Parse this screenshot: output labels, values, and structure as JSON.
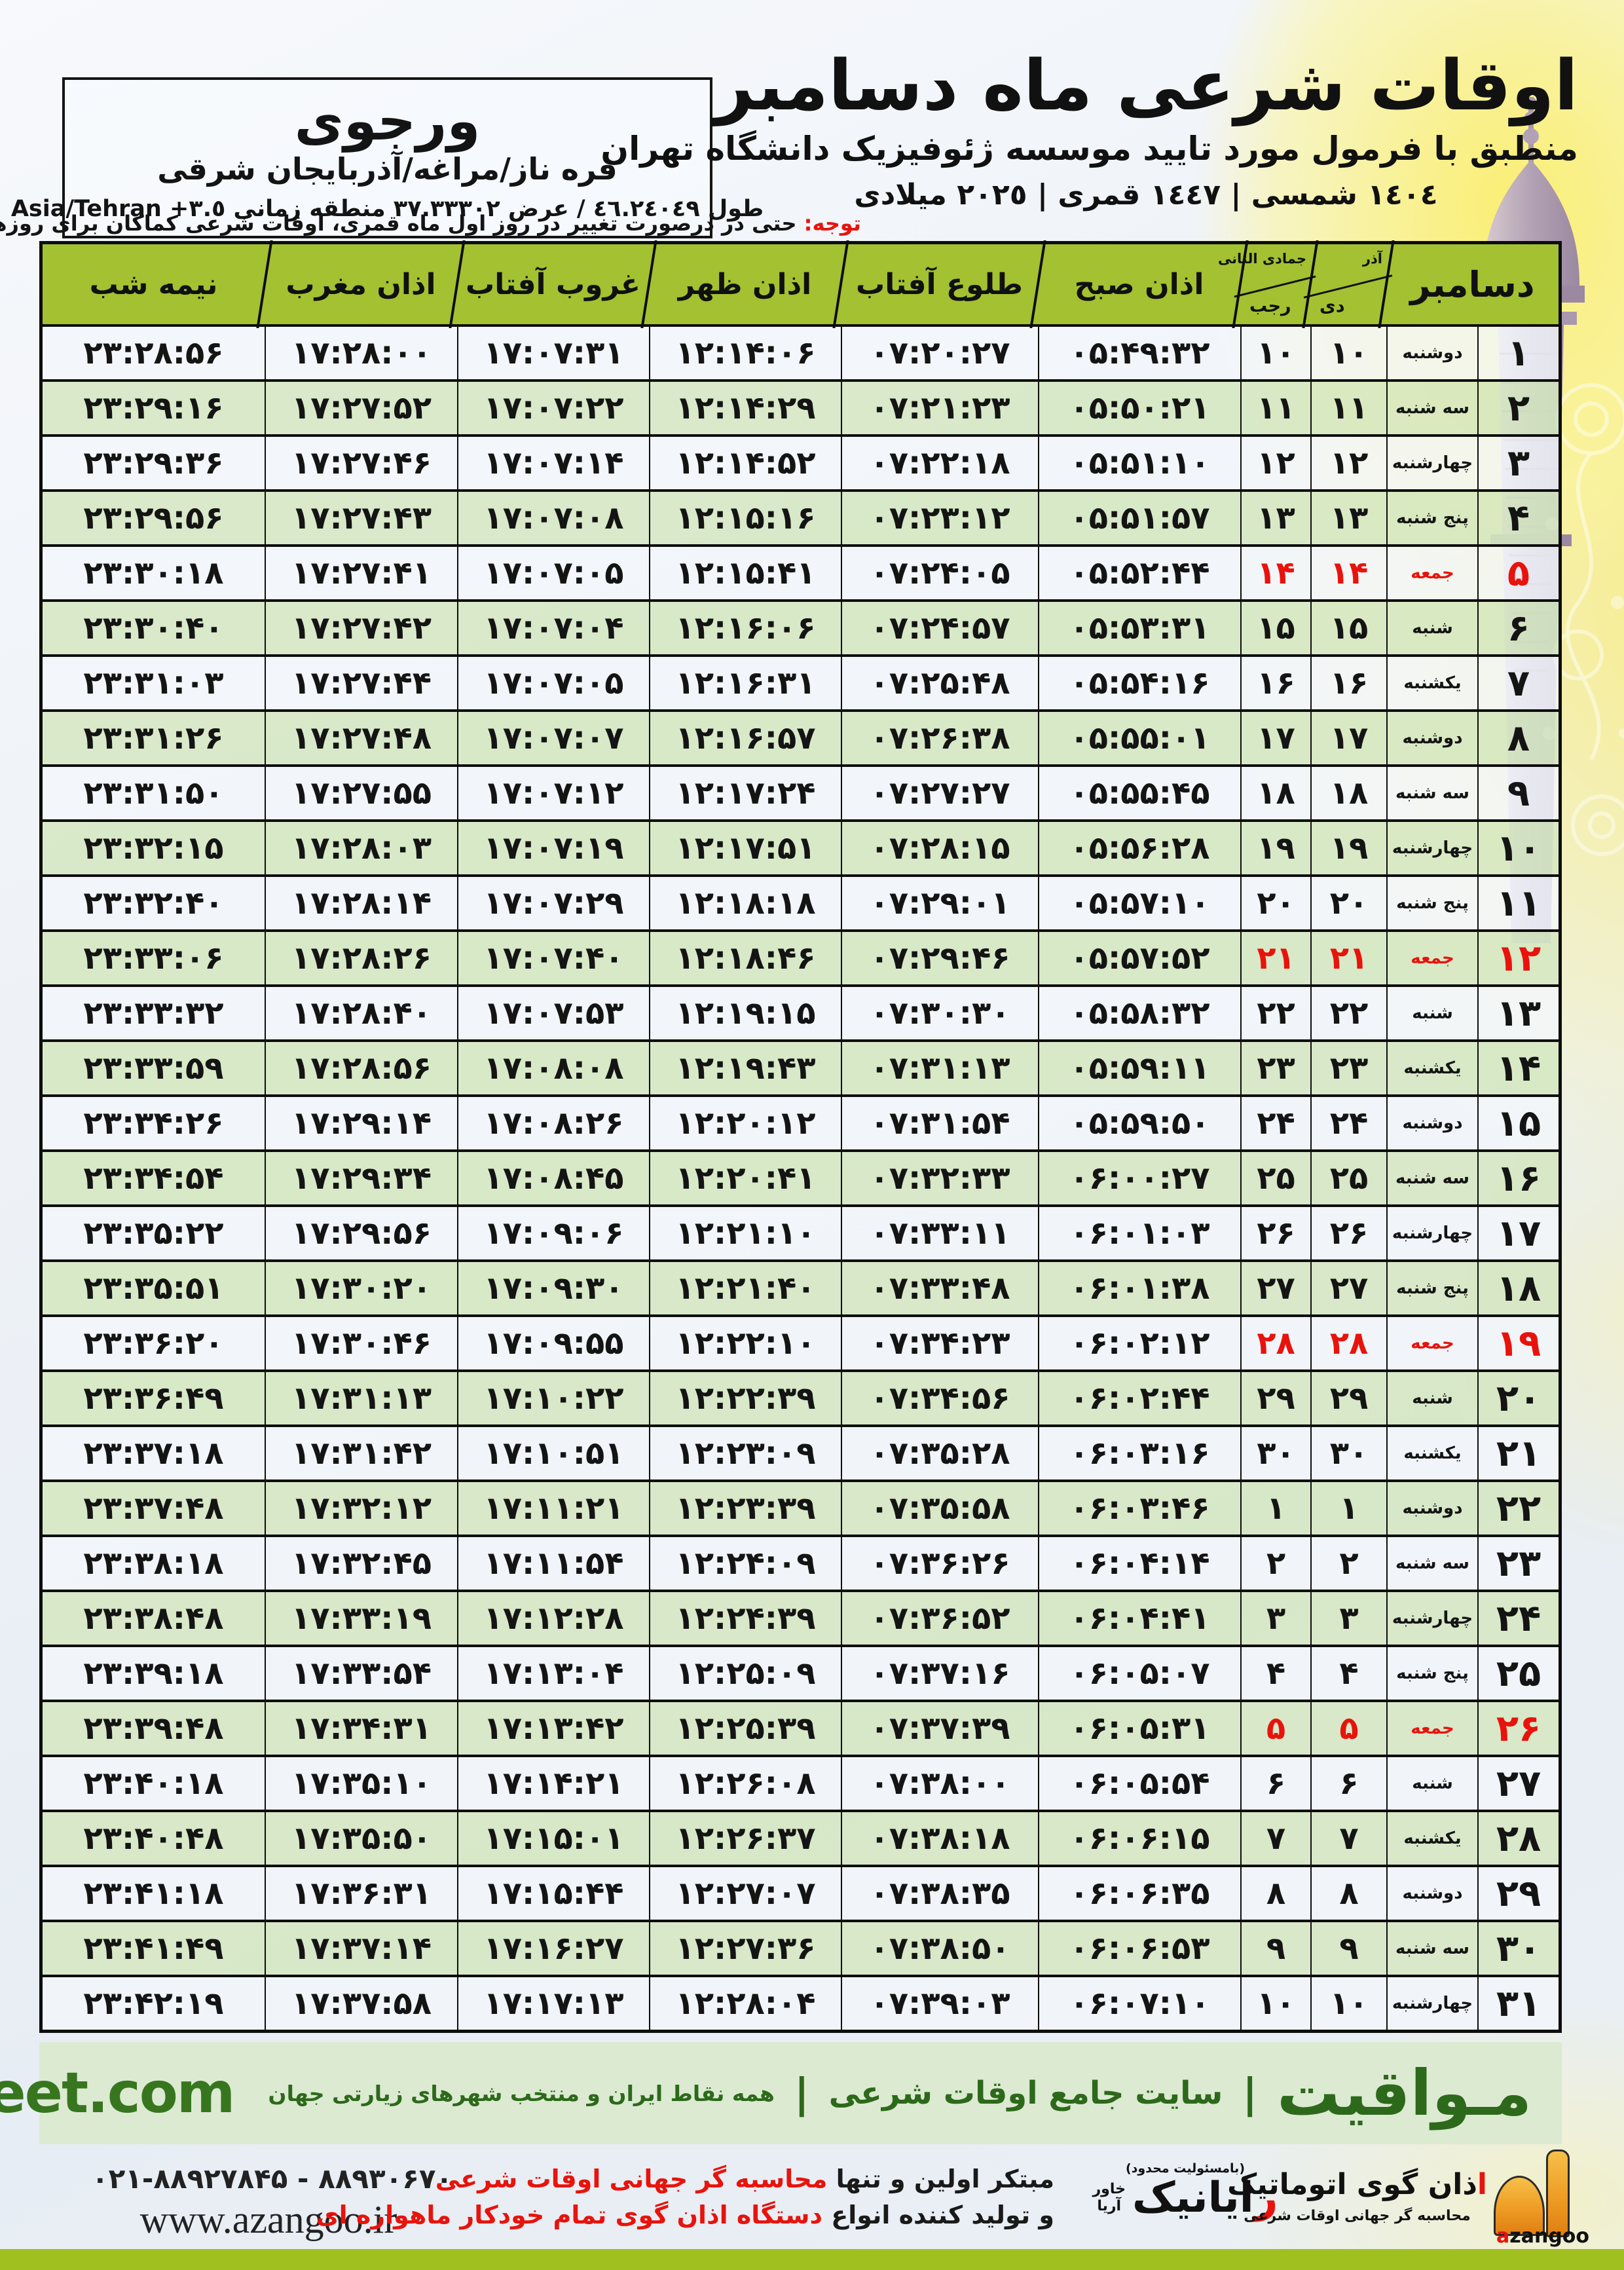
{
  "location": {
    "name": "ورجوی",
    "region": "قره ناز/مراغه/آذربایجان شرقی",
    "coords": "طول ٤٦.٢٤٠٤٩ / عرض ٣٧.٣٣٣٠٢ منطقه زمانی",
    "tz": "+٣.٥",
    "tzname": "Asia/Tehran"
  },
  "header": {
    "title": "اوقات شرعی ماه دسامبر",
    "subtitle": "منطبق با فرمول مورد تایید موسسه ژئوفیزیک دانشگاه تهران",
    "years": "١٤٠٤ شمسی | ١٤٤٧ قمری | ٢٠٢٥ میلادی"
  },
  "notice": {
    "label": "توجه:",
    "text": " حتی در درصورت تغییر در روز اول ماه قمری، اوقات شرعی کماکان برای روزهای شمسی و میلادی معتبر است."
  },
  "table": {
    "headers": {
      "month": "دسامبر",
      "persian_top": "آذر",
      "persian_bottom": "دی",
      "hijri_top": "جمادی الثانی",
      "hijri_bottom": "رجب",
      "fajr": "اذان صبح",
      "sunrise": "طلوع آفتاب",
      "dhuhr": "اذان ظهر",
      "sunset": "غروب آفتاب",
      "maghrib": "اذان مغرب",
      "midnight": "نیمه شب"
    },
    "rows": [
      {
        "day": "۱",
        "weekday": "دوشنبه",
        "jalali": "۱۰",
        "hijri": "۱۰",
        "fajr": "۰۵:۴۹:۳۲",
        "sunrise": "۰۷:۲۰:۲۷",
        "dhuhr": "۱۲:۱۴:۰۶",
        "sunset": "۱۷:۰۷:۳۱",
        "maghrib": "۱۷:۲۸:۰۰",
        "midnight": "۲۳:۲۸:۵۶",
        "friday": false
      },
      {
        "day": "۲",
        "weekday": "سه شنبه",
        "jalali": "۱۱",
        "hijri": "۱۱",
        "fajr": "۰۵:۵۰:۲۱",
        "sunrise": "۰۷:۲۱:۲۳",
        "dhuhr": "۱۲:۱۴:۲۹",
        "sunset": "۱۷:۰۷:۲۲",
        "maghrib": "۱۷:۲۷:۵۲",
        "midnight": "۲۳:۲۹:۱۶",
        "friday": false
      },
      {
        "day": "۳",
        "weekday": "چهارشنبه",
        "jalali": "۱۲",
        "hijri": "۱۲",
        "fajr": "۰۵:۵۱:۱۰",
        "sunrise": "۰۷:۲۲:۱۸",
        "dhuhr": "۱۲:۱۴:۵۲",
        "sunset": "۱۷:۰۷:۱۴",
        "maghrib": "۱۷:۲۷:۴۶",
        "midnight": "۲۳:۲۹:۳۶",
        "friday": false
      },
      {
        "day": "۴",
        "weekday": "پنج شنبه",
        "jalali": "۱۳",
        "hijri": "۱۳",
        "fajr": "۰۵:۵۱:۵۷",
        "sunrise": "۰۷:۲۳:۱۲",
        "dhuhr": "۱۲:۱۵:۱۶",
        "sunset": "۱۷:۰۷:۰۸",
        "maghrib": "۱۷:۲۷:۴۳",
        "midnight": "۲۳:۲۹:۵۶",
        "friday": false
      },
      {
        "day": "۵",
        "weekday": "جمعه",
        "jalali": "۱۴",
        "hijri": "۱۴",
        "fajr": "۰۵:۵۲:۴۴",
        "sunrise": "۰۷:۲۴:۰۵",
        "dhuhr": "۱۲:۱۵:۴۱",
        "sunset": "۱۷:۰۷:۰۵",
        "maghrib": "۱۷:۲۷:۴۱",
        "midnight": "۲۳:۳۰:۱۸",
        "friday": true
      },
      {
        "day": "۶",
        "weekday": "شنبه",
        "jalali": "۱۵",
        "hijri": "۱۵",
        "fajr": "۰۵:۵۳:۳۱",
        "sunrise": "۰۷:۲۴:۵۷",
        "dhuhr": "۱۲:۱۶:۰۶",
        "sunset": "۱۷:۰۷:۰۴",
        "maghrib": "۱۷:۲۷:۴۲",
        "midnight": "۲۳:۳۰:۴۰",
        "friday": false
      },
      {
        "day": "۷",
        "weekday": "یکشنبه",
        "jalali": "۱۶",
        "hijri": "۱۶",
        "fajr": "۰۵:۵۴:۱۶",
        "sunrise": "۰۷:۲۵:۴۸",
        "dhuhr": "۱۲:۱۶:۳۱",
        "sunset": "۱۷:۰۷:۰۵",
        "maghrib": "۱۷:۲۷:۴۴",
        "midnight": "۲۳:۳۱:۰۳",
        "friday": false
      },
      {
        "day": "۸",
        "weekday": "دوشنبه",
        "jalali": "۱۷",
        "hijri": "۱۷",
        "fajr": "۰۵:۵۵:۰۱",
        "sunrise": "۰۷:۲۶:۳۸",
        "dhuhr": "۱۲:۱۶:۵۷",
        "sunset": "۱۷:۰۷:۰۷",
        "maghrib": "۱۷:۲۷:۴۸",
        "midnight": "۲۳:۳۱:۲۶",
        "friday": false
      },
      {
        "day": "۹",
        "weekday": "سه شنبه",
        "jalali": "۱۸",
        "hijri": "۱۸",
        "fajr": "۰۵:۵۵:۴۵",
        "sunrise": "۰۷:۲۷:۲۷",
        "dhuhr": "۱۲:۱۷:۲۴",
        "sunset": "۱۷:۰۷:۱۲",
        "maghrib": "۱۷:۲۷:۵۵",
        "midnight": "۲۳:۳۱:۵۰",
        "friday": false
      },
      {
        "day": "۱۰",
        "weekday": "چهارشنبه",
        "jalali": "۱۹",
        "hijri": "۱۹",
        "fajr": "۰۵:۵۶:۲۸",
        "sunrise": "۰۷:۲۸:۱۵",
        "dhuhr": "۱۲:۱۷:۵۱",
        "sunset": "۱۷:۰۷:۱۹",
        "maghrib": "۱۷:۲۸:۰۳",
        "midnight": "۲۳:۳۲:۱۵",
        "friday": false
      },
      {
        "day": "۱۱",
        "weekday": "پنج شنبه",
        "jalali": "۲۰",
        "hijri": "۲۰",
        "fajr": "۰۵:۵۷:۱۰",
        "sunrise": "۰۷:۲۹:۰۱",
        "dhuhr": "۱۲:۱۸:۱۸",
        "sunset": "۱۷:۰۷:۲۹",
        "maghrib": "۱۷:۲۸:۱۴",
        "midnight": "۲۳:۳۲:۴۰",
        "friday": false
      },
      {
        "day": "۱۲",
        "weekday": "جمعه",
        "jalali": "۲۱",
        "hijri": "۲۱",
        "fajr": "۰۵:۵۷:۵۲",
        "sunrise": "۰۷:۲۹:۴۶",
        "dhuhr": "۱۲:۱۸:۴۶",
        "sunset": "۱۷:۰۷:۴۰",
        "maghrib": "۱۷:۲۸:۲۶",
        "midnight": "۲۳:۳۳:۰۶",
        "friday": true
      },
      {
        "day": "۱۳",
        "weekday": "شنبه",
        "jalali": "۲۲",
        "hijri": "۲۲",
        "fajr": "۰۵:۵۸:۳۲",
        "sunrise": "۰۷:۳۰:۳۰",
        "dhuhr": "۱۲:۱۹:۱۵",
        "sunset": "۱۷:۰۷:۵۳",
        "maghrib": "۱۷:۲۸:۴۰",
        "midnight": "۲۳:۳۳:۳۲",
        "friday": false
      },
      {
        "day": "۱۴",
        "weekday": "یکشنبه",
        "jalali": "۲۳",
        "hijri": "۲۳",
        "fajr": "۰۵:۵۹:۱۱",
        "sunrise": "۰۷:۳۱:۱۳",
        "dhuhr": "۱۲:۱۹:۴۳",
        "sunset": "۱۷:۰۸:۰۸",
        "maghrib": "۱۷:۲۸:۵۶",
        "midnight": "۲۳:۳۳:۵۹",
        "friday": false
      },
      {
        "day": "۱۵",
        "weekday": "دوشنبه",
        "jalali": "۲۴",
        "hijri": "۲۴",
        "fajr": "۰۵:۵۹:۵۰",
        "sunrise": "۰۷:۳۱:۵۴",
        "dhuhr": "۱۲:۲۰:۱۲",
        "sunset": "۱۷:۰۸:۲۶",
        "maghrib": "۱۷:۲۹:۱۴",
        "midnight": "۲۳:۳۴:۲۶",
        "friday": false
      },
      {
        "day": "۱۶",
        "weekday": "سه شنبه",
        "jalali": "۲۵",
        "hijri": "۲۵",
        "fajr": "۰۶:۰۰:۲۷",
        "sunrise": "۰۷:۳۲:۳۳",
        "dhuhr": "۱۲:۲۰:۴۱",
        "sunset": "۱۷:۰۸:۴۵",
        "maghrib": "۱۷:۲۹:۳۴",
        "midnight": "۲۳:۳۴:۵۴",
        "friday": false
      },
      {
        "day": "۱۷",
        "weekday": "چهارشنبه",
        "jalali": "۲۶",
        "hijri": "۲۶",
        "fajr": "۰۶:۰۱:۰۳",
        "sunrise": "۰۷:۳۳:۱۱",
        "dhuhr": "۱۲:۲۱:۱۰",
        "sunset": "۱۷:۰۹:۰۶",
        "maghrib": "۱۷:۲۹:۵۶",
        "midnight": "۲۳:۳۵:۲۲",
        "friday": false
      },
      {
        "day": "۱۸",
        "weekday": "پنج شنبه",
        "jalali": "۲۷",
        "hijri": "۲۷",
        "fajr": "۰۶:۰۱:۳۸",
        "sunrise": "۰۷:۳۳:۴۸",
        "dhuhr": "۱۲:۲۱:۴۰",
        "sunset": "۱۷:۰۹:۳۰",
        "maghrib": "۱۷:۳۰:۲۰",
        "midnight": "۲۳:۳۵:۵۱",
        "friday": false
      },
      {
        "day": "۱۹",
        "weekday": "جمعه",
        "jalali": "۲۸",
        "hijri": "۲۸",
        "fajr": "۰۶:۰۲:۱۲",
        "sunrise": "۰۷:۳۴:۲۳",
        "dhuhr": "۱۲:۲۲:۱۰",
        "sunset": "۱۷:۰۹:۵۵",
        "maghrib": "۱۷:۳۰:۴۶",
        "midnight": "۲۳:۳۶:۲۰",
        "friday": true
      },
      {
        "day": "۲۰",
        "weekday": "شنبه",
        "jalali": "۲۹",
        "hijri": "۲۹",
        "fajr": "۰۶:۰۲:۴۴",
        "sunrise": "۰۷:۳۴:۵۶",
        "dhuhr": "۱۲:۲۲:۳۹",
        "sunset": "۱۷:۱۰:۲۲",
        "maghrib": "۱۷:۳۱:۱۳",
        "midnight": "۲۳:۳۶:۴۹",
        "friday": false
      },
      {
        "day": "۲۱",
        "weekday": "یکشنبه",
        "jalali": "۳۰",
        "hijri": "۳۰",
        "fajr": "۰۶:۰۳:۱۶",
        "sunrise": "۰۷:۳۵:۲۸",
        "dhuhr": "۱۲:۲۳:۰۹",
        "sunset": "۱۷:۱۰:۵۱",
        "maghrib": "۱۷:۳۱:۴۲",
        "midnight": "۲۳:۳۷:۱۸",
        "friday": false
      },
      {
        "day": "۲۲",
        "weekday": "دوشنبه",
        "jalali": "۱",
        "hijri": "۱",
        "fajr": "۰۶:۰۳:۴۶",
        "sunrise": "۰۷:۳۵:۵۸",
        "dhuhr": "۱۲:۲۳:۳۹",
        "sunset": "۱۷:۱۱:۲۱",
        "maghrib": "۱۷:۳۲:۱۲",
        "midnight": "۲۳:۳۷:۴۸",
        "friday": false
      },
      {
        "day": "۲۳",
        "weekday": "سه شنبه",
        "jalali": "۲",
        "hijri": "۲",
        "fajr": "۰۶:۰۴:۱۴",
        "sunrise": "۰۷:۳۶:۲۶",
        "dhuhr": "۱۲:۲۴:۰۹",
        "sunset": "۱۷:۱۱:۵۴",
        "maghrib": "۱۷:۳۲:۴۵",
        "midnight": "۲۳:۳۸:۱۸",
        "friday": false
      },
      {
        "day": "۲۴",
        "weekday": "چهارشنبه",
        "jalali": "۳",
        "hijri": "۳",
        "fajr": "۰۶:۰۴:۴۱",
        "sunrise": "۰۷:۳۶:۵۲",
        "dhuhr": "۱۲:۲۴:۳۹",
        "sunset": "۱۷:۱۲:۲۸",
        "maghrib": "۱۷:۳۳:۱۹",
        "midnight": "۲۳:۳۸:۴۸",
        "friday": false
      },
      {
        "day": "۲۵",
        "weekday": "پنج شنبه",
        "jalali": "۴",
        "hijri": "۴",
        "fajr": "۰۶:۰۵:۰۷",
        "sunrise": "۰۷:۳۷:۱۶",
        "dhuhr": "۱۲:۲۵:۰۹",
        "sunset": "۱۷:۱۳:۰۴",
        "maghrib": "۱۷:۳۳:۵۴",
        "midnight": "۲۳:۳۹:۱۸",
        "friday": false
      },
      {
        "day": "۲۶",
        "weekday": "جمعه",
        "jalali": "۵",
        "hijri": "۵",
        "fajr": "۰۶:۰۵:۳۱",
        "sunrise": "۰۷:۳۷:۳۹",
        "dhuhr": "۱۲:۲۵:۳۹",
        "sunset": "۱۷:۱۳:۴۲",
        "maghrib": "۱۷:۳۴:۳۱",
        "midnight": "۲۳:۳۹:۴۸",
        "friday": true
      },
      {
        "day": "۲۷",
        "weekday": "شنبه",
        "jalali": "۶",
        "hijri": "۶",
        "fajr": "۰۶:۰۵:۵۴",
        "sunrise": "۰۷:۳۸:۰۰",
        "dhuhr": "۱۲:۲۶:۰۸",
        "sunset": "۱۷:۱۴:۲۱",
        "maghrib": "۱۷:۳۵:۱۰",
        "midnight": "۲۳:۴۰:۱۸",
        "friday": false
      },
      {
        "day": "۲۸",
        "weekday": "یکشنبه",
        "jalali": "۷",
        "hijri": "۷",
        "fajr": "۰۶:۰۶:۱۵",
        "sunrise": "۰۷:۳۸:۱۸",
        "dhuhr": "۱۲:۲۶:۳۷",
        "sunset": "۱۷:۱۵:۰۱",
        "maghrib": "۱۷:۳۵:۵۰",
        "midnight": "۲۳:۴۰:۴۸",
        "friday": false
      },
      {
        "day": "۲۹",
        "weekday": "دوشنبه",
        "jalali": "۸",
        "hijri": "۸",
        "fajr": "۰۶:۰۶:۳۵",
        "sunrise": "۰۷:۳۸:۳۵",
        "dhuhr": "۱۲:۲۷:۰۷",
        "sunset": "۱۷:۱۵:۴۴",
        "maghrib": "۱۷:۳۶:۳۱",
        "midnight": "۲۳:۴۱:۱۸",
        "friday": false
      },
      {
        "day": "۳۰",
        "weekday": "سه شنبه",
        "jalali": "۹",
        "hijri": "۹",
        "fajr": "۰۶:۰۶:۵۳",
        "sunrise": "۰۷:۳۸:۵۰",
        "dhuhr": "۱۲:۲۷:۳۶",
        "sunset": "۱۷:۱۶:۲۷",
        "maghrib": "۱۷:۳۷:۱۴",
        "midnight": "۲۳:۴۱:۴۹",
        "friday": false
      },
      {
        "day": "۳۱",
        "weekday": "چهارشنبه",
        "jalali": "۱۰",
        "hijri": "۱۰",
        "fajr": "۰۶:۰۷:۱۰",
        "sunrise": "۰۷:۳۹:۰۳",
        "dhuhr": "۱۲:۲۸:۰۴",
        "sunset": "۱۷:۱۷:۱۳",
        "maghrib": "۱۷:۳۷:۵۸",
        "midnight": "۲۳:۴۲:۱۹",
        "friday": false
      }
    ]
  },
  "footer": {
    "brand": "مـواقیت",
    "sep": "|",
    "tagline1": "سایت جامع اوقات شرعی",
    "tagline2": "همه نقاط ایران و منتخب شهرهای زیارتی جهان",
    "site": "mavaqeet.com"
  },
  "bottom": {
    "phone": "۰۲۱-۸۸۹۲۷۸۴۵ - ۸۸۹۳۰۶۷۰",
    "website": "www.azangoo.ir",
    "claim1_black": "مبتکر اولین و تنها ",
    "claim1_red": "محاسبه گر جهانی اوقات شرعی",
    "claim2_black": "و تولید کننده انواع ",
    "claim2_red": "دستگاه اذان گوی تمام خودکار ماهواره ای",
    "rayanik": {
      "note": "(بامسئولیت محدود)",
      "first": "ر",
      "rest": "ایانیک",
      "sub1": "خاور",
      "sub2": "آریا"
    },
    "azangoo": {
      "first": "ا",
      "rest": "ذان گوی اتوماتیک",
      "sub": "محاسبه گر جهانی اوقات شرعی",
      "a": "a",
      "zangoo": "zangoo"
    }
  },
  "colors": {
    "header_green": "#a3c130",
    "row_green": "#d5e7c2",
    "band_green": "#dcead2",
    "brand_dark_green": "#2d691b",
    "accent_red": "#e8130c",
    "bottom_bar_green": "#a0c020"
  }
}
